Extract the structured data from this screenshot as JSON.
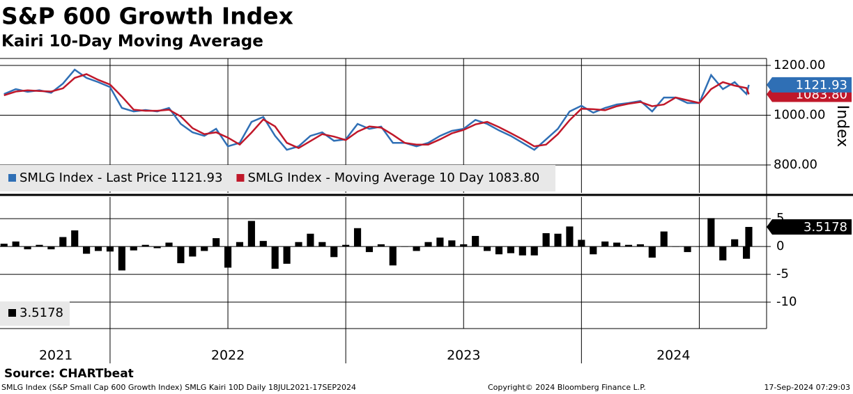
{
  "header": {
    "title": "S&P 600 Growth Index",
    "subtitle": "Kairi 10-Day Moving Average"
  },
  "chart_data": [
    {
      "type": "line",
      "y_label": "Index",
      "x": [
        2021.55,
        2021.6,
        2021.65,
        2021.7,
        2021.75,
        2021.8,
        2021.85,
        2021.9,
        2021.95,
        2022.0,
        2022.05,
        2022.1,
        2022.15,
        2022.2,
        2022.25,
        2022.3,
        2022.35,
        2022.4,
        2022.45,
        2022.5,
        2022.55,
        2022.6,
        2022.65,
        2022.7,
        2022.75,
        2022.8,
        2022.85,
        2022.9,
        2022.95,
        2023.0,
        2023.05,
        2023.1,
        2023.15,
        2023.2,
        2023.25,
        2023.3,
        2023.35,
        2023.4,
        2023.45,
        2023.5,
        2023.55,
        2023.6,
        2023.65,
        2023.7,
        2023.75,
        2023.8,
        2023.85,
        2023.9,
        2023.95,
        2024.0,
        2024.05,
        2024.1,
        2024.15,
        2024.2,
        2024.25,
        2024.3,
        2024.35,
        2024.4,
        2024.45,
        2024.5,
        2024.55,
        2024.6,
        2024.65,
        2024.7,
        2024.71
      ],
      "series": [
        {
          "name": "SMLG Index - Last Price 1121.93",
          "color": "#2f6fb5",
          "values": [
            1085,
            1105,
            1094,
            1100,
            1090,
            1127,
            1183,
            1150,
            1133,
            1113,
            1029,
            1015,
            1021,
            1015,
            1029,
            965,
            931,
            917,
            945,
            875,
            889,
            973,
            993,
            917,
            861,
            875,
            917,
            931,
            897,
            903,
            965,
            945,
            954,
            889,
            889,
            875,
            889,
            917,
            937,
            945,
            981,
            965,
            939,
            917,
            889,
            861,
            903,
            945,
            1015,
            1038,
            1010,
            1029,
            1043,
            1049,
            1057,
            1015,
            1071,
            1071,
            1049,
            1049,
            1161,
            1105,
            1133,
            1085,
            1121.93
          ]
        },
        {
          "name": "SMLG Index - Moving Average 10 Day 1083.80",
          "color": "#c0182a",
          "end_label": "1083.80",
          "values": [
            1080,
            1095,
            1100,
            1097,
            1095,
            1108,
            1150,
            1165,
            1142,
            1123,
            1075,
            1022,
            1018,
            1018,
            1022,
            995,
            948,
            924,
            931,
            910,
            882,
            930,
            983,
            955,
            889,
            868,
            896,
            924,
            914,
            900,
            934,
            955,
            950,
            921,
            889,
            882,
            882,
            903,
            927,
            941,
            963,
            973,
            952,
            928,
            903,
            875,
            882,
            924,
            980,
            1026,
            1024,
            1020,
            1036,
            1046,
            1053,
            1036,
            1043,
            1071,
            1060,
            1049,
            1105,
            1133,
            1119,
            1109,
            1083.8
          ]
        }
      ],
      "xlim": [
        2021.533,
        2024.75
      ],
      "ylim": [
        688,
        1228
      ],
      "yticks": [
        {
          "value": 800,
          "label": "800.00"
        },
        {
          "value": 1000,
          "label": "1000.00"
        },
        {
          "value": 1200,
          "label": "1200.00"
        }
      ],
      "xgrid": [
        2022,
        2022.5,
        2023,
        2023.5,
        2024,
        2024.5
      ]
    },
    {
      "type": "bar",
      "x": [
        2021.55,
        2021.6,
        2021.65,
        2021.7,
        2021.75,
        2021.8,
        2021.85,
        2021.9,
        2021.95,
        2022.0,
        2022.05,
        2022.1,
        2022.15,
        2022.2,
        2022.25,
        2022.3,
        2022.35,
        2022.4,
        2022.45,
        2022.5,
        2022.55,
        2022.6,
        2022.65,
        2022.7,
        2022.75,
        2022.8,
        2022.85,
        2022.9,
        2022.95,
        2023.0,
        2023.05,
        2023.1,
        2023.15,
        2023.2,
        2023.25,
        2023.3,
        2023.35,
        2023.4,
        2023.45,
        2023.5,
        2023.55,
        2023.6,
        2023.65,
        2023.7,
        2023.75,
        2023.8,
        2023.85,
        2023.9,
        2023.95,
        2024.0,
        2024.05,
        2024.1,
        2024.15,
        2024.2,
        2024.25,
        2024.3,
        2024.35,
        2024.4,
        2024.45,
        2024.5,
        2024.55,
        2024.6,
        2024.65,
        2024.7,
        2024.71
      ],
      "series": [
        {
          "name": "3.5178",
          "color": "#000000",
          "values": [
            0.5,
            0.9,
            -0.5,
            0.3,
            -0.5,
            1.7,
            2.9,
            -1.3,
            -0.8,
            -0.9,
            -4.3,
            -0.7,
            0.3,
            -0.3,
            0.7,
            -3.0,
            -1.8,
            -0.8,
            1.5,
            -3.8,
            0.8,
            4.6,
            1.0,
            -4.0,
            -3.1,
            0.8,
            2.3,
            0.8,
            -1.9,
            0.3,
            3.3,
            -1.0,
            0.4,
            -3.4,
            0.0,
            -0.8,
            0.8,
            1.6,
            1.1,
            0.4,
            1.9,
            -0.8,
            -1.4,
            -1.2,
            -1.6,
            -1.6,
            2.4,
            2.3,
            3.6,
            1.2,
            -1.4,
            0.9,
            0.7,
            0.3,
            0.4,
            -2.0,
            2.7,
            0.0,
            -1.0,
            0.0,
            5.1,
            -2.5,
            1.3,
            -2.2,
            3.5178
          ]
        }
      ],
      "xlim": [
        2021.533,
        2024.75
      ],
      "ylim": [
        -14.75,
        8.9
      ],
      "yticks": [
        5,
        0,
        -5,
        -10
      ],
      "xgrid": [
        2022,
        2022.5,
        2023,
        2023.5,
        2024,
        2024.5
      ],
      "xticks": [
        {
          "value": 2021.77,
          "label": "2021"
        },
        {
          "value": 2022.5,
          "label": "2022"
        },
        {
          "value": 2023.5,
          "label": "2023"
        },
        {
          "value": 2024.39,
          "label": "2024"
        }
      ],
      "year_separators": [
        2022,
        2023,
        2024
      ]
    }
  ],
  "footer": {
    "source": "Source: CHARTbeat",
    "description": "SMLG Index (S&P Small Cap 600 Growth Index) SMLG Kairi 10D  Daily 18JUL2021-17SEP2024",
    "copyright": "Copyright© 2024 Bloomberg Finance L.P.",
    "timestamp": "17-Sep-2024 07:29:03"
  }
}
